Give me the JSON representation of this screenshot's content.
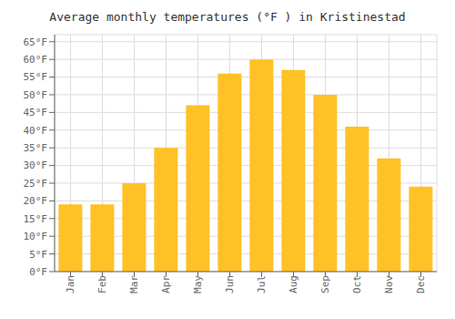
{
  "chart_data": {
    "type": "bar",
    "title": "Average monthly temperatures (°F ) in Kristinestad",
    "categories": [
      "Jan",
      "Feb",
      "Mar",
      "Apr",
      "May",
      "Jun",
      "Jul",
      "Aug",
      "Sep",
      "Oct",
      "Nov",
      "Dec"
    ],
    "values": [
      19,
      19,
      25,
      35,
      47,
      56,
      60,
      57,
      50,
      41,
      32,
      24
    ],
    "color": "#FFC125",
    "ylim": [
      0,
      67
    ],
    "yticks": [
      {
        "value": 0,
        "label": "0°F"
      },
      {
        "value": 5,
        "label": "5°F"
      },
      {
        "value": 10,
        "label": "10°F"
      },
      {
        "value": 15,
        "label": "15°F"
      },
      {
        "value": 20,
        "label": "20°F"
      },
      {
        "value": 25,
        "label": "25°F"
      },
      {
        "value": 30,
        "label": "30°F"
      },
      {
        "value": 35,
        "label": "35°F"
      },
      {
        "value": 40,
        "label": "40°F"
      },
      {
        "value": 45,
        "label": "45°F"
      },
      {
        "value": 50,
        "label": "50°F"
      },
      {
        "value": 55,
        "label": "55°F"
      },
      {
        "value": 60,
        "label": "60°F"
      },
      {
        "value": 65,
        "label": "65°F"
      }
    ],
    "grid": true
  }
}
